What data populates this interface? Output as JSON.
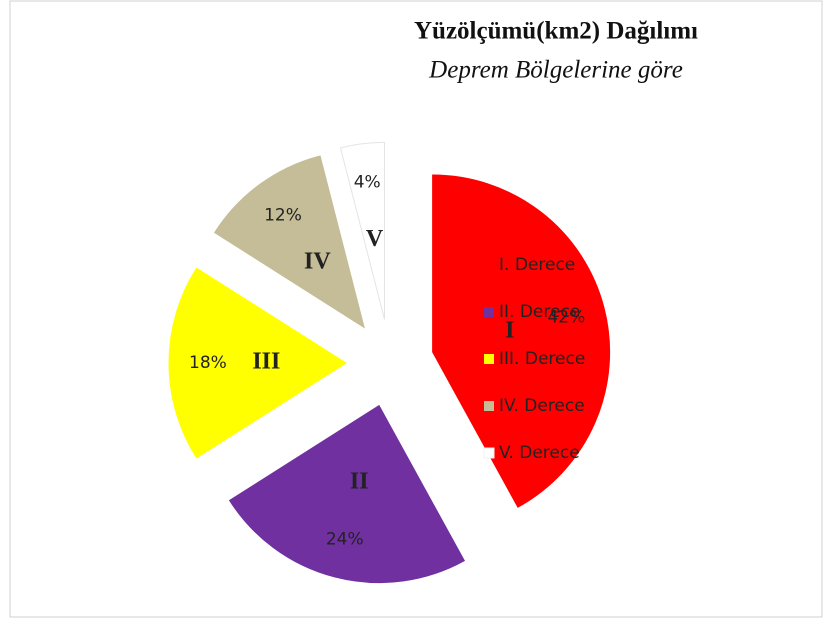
{
  "chart_data": {
    "type": "pie",
    "title": "Yüzölçümü(km2) Dağılımı",
    "subtitle": "Deprem Bölgelerine göre",
    "categories": [
      "I. Derece",
      "II. Derece",
      "III. Derece",
      "IV. Derece",
      "V. Derece"
    ],
    "values": [
      42,
      24,
      18,
      12,
      4
    ],
    "value_labels": [
      "42%",
      "24%",
      "18%",
      "12%",
      "4%"
    ],
    "slice_labels": [
      "I",
      "II",
      "III",
      "IV",
      "V"
    ],
    "colors": [
      "#ff0000",
      "#7030a0",
      "#ffff00",
      "#c4bd97",
      "#ffffff"
    ],
    "legend": "right"
  }
}
